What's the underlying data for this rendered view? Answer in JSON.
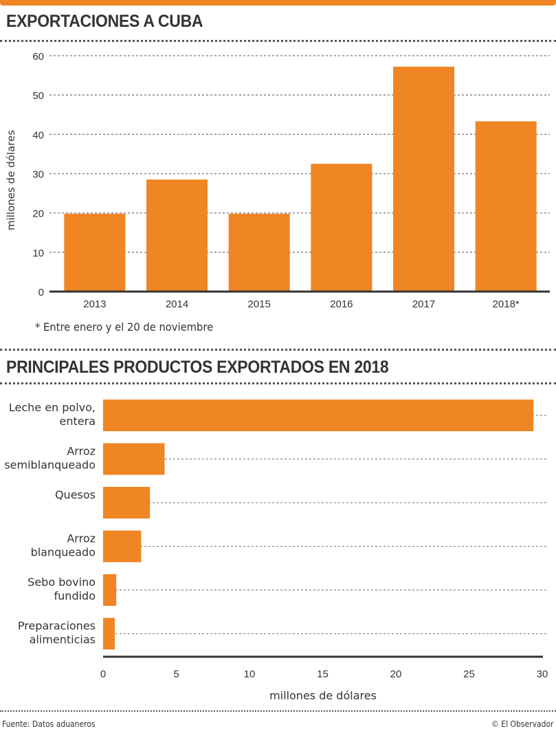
{
  "colors": {
    "accent": "#f08523",
    "text": "#333333",
    "grid": "#999999",
    "axis": "#333333"
  },
  "footer": {
    "source": "Fuente: Datos aduaneros",
    "credit": "© El Observador"
  },
  "chart_data": [
    {
      "type": "bar",
      "orientation": "vertical",
      "title": "EXPORTACIONES A CUBA",
      "xlabel": "",
      "ylabel": "millones de dólares",
      "categories": [
        "2013",
        "2014",
        "2015",
        "2016",
        "2017",
        "2018*"
      ],
      "values": [
        19.8,
        28.5,
        19.8,
        32.5,
        57.2,
        43.3
      ],
      "ylim": [
        0,
        60
      ],
      "yticks": [
        0,
        10,
        20,
        30,
        40,
        50,
        60
      ],
      "ytick_labels": [
        "0",
        "10",
        "20",
        "30",
        "40",
        "50",
        "60"
      ],
      "grid": true,
      "note": "* Entre enero y el 20 de noviembre"
    },
    {
      "type": "bar",
      "orientation": "horizontal",
      "title": "PRINCIPALES PRODUCTOS EXPORTADOS EN 2018",
      "xlabel": "millones de dólares",
      "ylabel": "",
      "categories": [
        [
          "Leche en polvo,",
          "entera"
        ],
        [
          "Arroz",
          "semiblanqueado"
        ],
        [
          "Quesos"
        ],
        [
          "Arroz",
          "blanqueado"
        ],
        [
          "Sebo bovino",
          "fundido"
        ],
        [
          "Preparaciones",
          "alimenticias"
        ]
      ],
      "values": [
        29.4,
        4.2,
        3.2,
        2.6,
        0.9,
        0.8
      ],
      "xlim": [
        0,
        30
      ],
      "xticks": [
        0,
        5,
        10,
        15,
        20,
        25,
        30
      ],
      "xtick_labels": [
        "0",
        "5",
        "10",
        "15",
        "20",
        "25",
        "30"
      ],
      "grid": true
    }
  ]
}
